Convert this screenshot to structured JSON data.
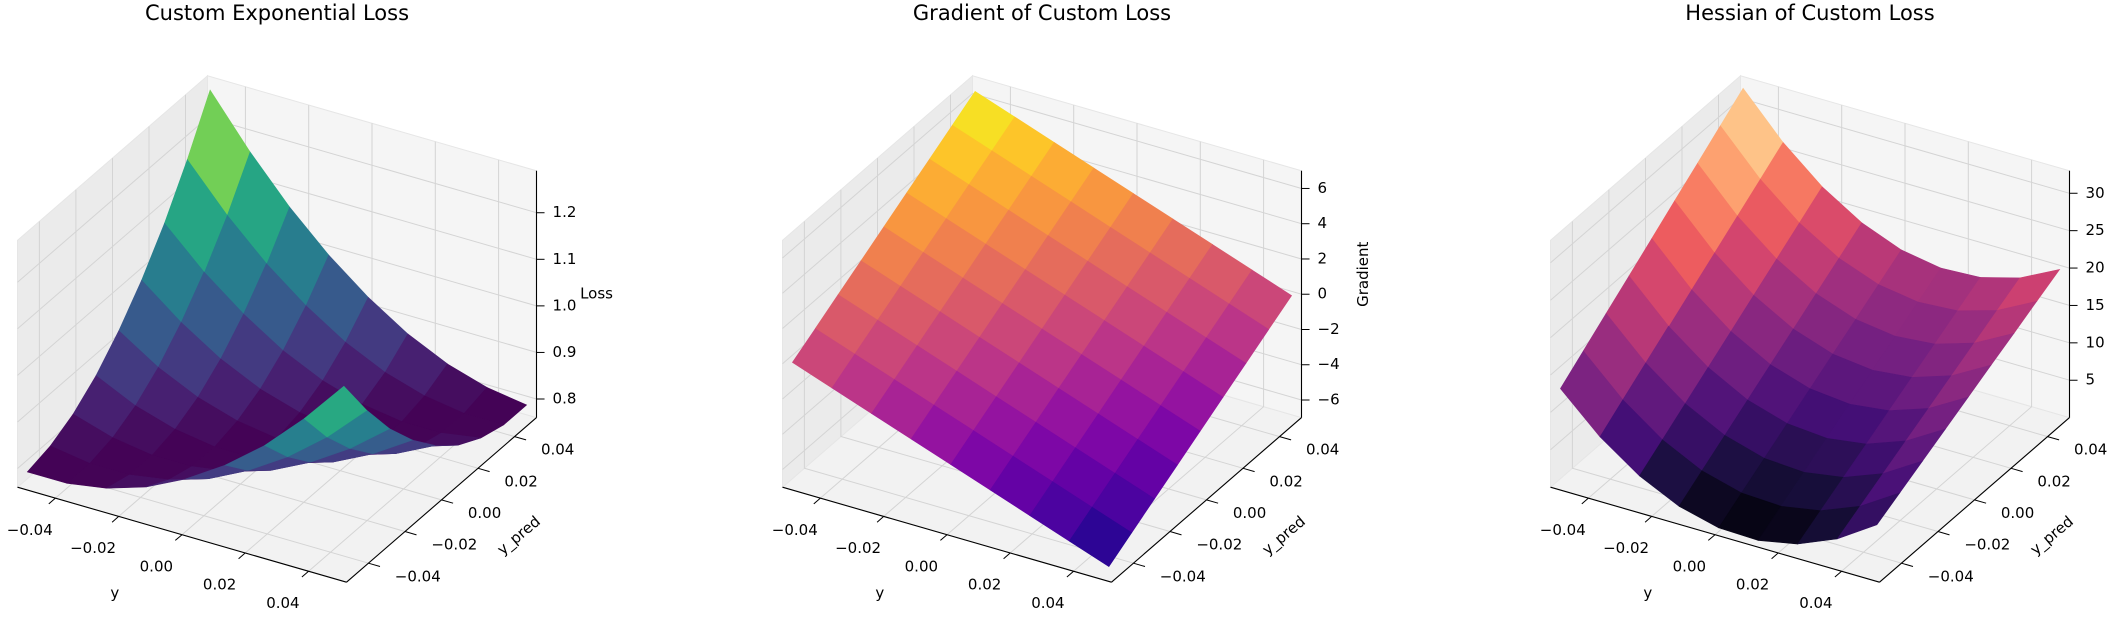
{
  "chart_data": [
    {
      "type": "surface",
      "title": "Custom Exponential Loss",
      "xlabel": "y",
      "ylabel": "y_pred",
      "zlabel": "Loss",
      "colormap": "viridis",
      "grid": true,
      "x": [
        -0.05,
        -0.0375,
        -0.025,
        -0.0125,
        0,
        0.0125,
        0.025,
        0.0375,
        0.05
      ],
      "y": [
        -0.05,
        -0.0375,
        -0.025,
        -0.0125,
        0,
        0.0125,
        0.025,
        0.0375,
        0.05
      ],
      "z": [
        [
          0.79,
          0.79,
          0.804,
          0.831,
          0.873,
          0.927,
          0.994,
          1.076,
          1.17
        ],
        [
          0.803,
          0.79,
          0.79,
          0.804,
          0.831,
          0.873,
          0.927,
          0.994,
          1.076
        ],
        [
          0.829,
          0.803,
          0.79,
          0.79,
          0.804,
          0.831,
          0.873,
          0.927,
          0.994
        ],
        [
          0.869,
          0.829,
          0.803,
          0.79,
          0.79,
          0.804,
          0.831,
          0.873,
          0.927
        ],
        [
          0.923,
          0.869,
          0.829,
          0.803,
          0.79,
          0.79,
          0.804,
          0.831,
          0.873
        ],
        [
          0.989,
          0.923,
          0.869,
          0.829,
          0.803,
          0.79,
          0.79,
          0.804,
          0.831
        ],
        [
          1.069,
          0.989,
          0.923,
          0.869,
          0.829,
          0.803,
          0.79,
          0.79,
          0.804
        ],
        [
          1.163,
          1.069,
          0.989,
          0.923,
          0.869,
          0.829,
          0.803,
          0.79,
          0.79
        ],
        [
          1.27,
          1.163,
          1.069,
          0.989,
          0.923,
          0.869,
          0.829,
          0.803,
          0.79
        ]
      ],
      "xlim": [
        -0.052,
        0.052
      ],
      "ylim": [
        -0.052,
        0.052
      ],
      "zlim": [
        0.76,
        1.29
      ],
      "xticks": [
        {
          "value": -0.04,
          "label": "−0.04"
        },
        {
          "value": -0.02,
          "label": "−0.02"
        },
        {
          "value": 0,
          "label": "0.00"
        },
        0.02,
        0.04
      ],
      "yticks": [
        {
          "value": -0.04,
          "label": "−0.04"
        },
        {
          "value": -0.02,
          "label": "−0.02"
        },
        {
          "value": 0,
          "label": "0.00"
        },
        0.02,
        0.04
      ],
      "zticks": [
        0.8,
        0.9,
        {
          "value": 1,
          "label": "1.0"
        },
        1.1,
        1.2
      ]
    },
    {
      "type": "surface",
      "title": "Gradient of Custom Loss",
      "xlabel": "y",
      "ylabel": "y_pred",
      "zlabel": "Gradient",
      "colormap": "plasma",
      "grid": true,
      "x": [
        -0.05,
        -0.0375,
        -0.025,
        -0.0125,
        0,
        0.0125,
        0.025,
        0.0375,
        0.05
      ],
      "y": [
        -0.05,
        -0.0375,
        -0.025,
        -0.0125,
        0,
        0.0125,
        0.025,
        0.0375,
        0.05
      ],
      "z": [
        [
          0,
          -0.8,
          -1.6,
          -2.4,
          -3.2,
          -4,
          -4.8,
          -5.6,
          -6.4
        ],
        [
          0.8,
          0,
          -0.8,
          -1.6,
          -2.4,
          -3.2,
          -4,
          -4.8,
          -5.6
        ],
        [
          1.6,
          0.8,
          0,
          -0.8,
          -1.6,
          -2.4,
          -3.2,
          -4,
          -4.8
        ],
        [
          2.4,
          1.6,
          0.8,
          0,
          -0.8,
          -1.6,
          -2.4,
          -3.2,
          -4
        ],
        [
          3.2,
          2.4,
          1.6,
          0.8,
          0,
          -0.8,
          -1.6,
          -2.4,
          -3.2
        ],
        [
          4,
          3.2,
          2.4,
          1.6,
          0.8,
          0,
          -0.8,
          -1.6,
          -2.4
        ],
        [
          4.8,
          4,
          3.2,
          2.4,
          1.6,
          0.8,
          0,
          -0.8,
          -1.6
        ],
        [
          5.6,
          4.8,
          4,
          3.2,
          2.4,
          1.6,
          0.8,
          0,
          -0.8
        ],
        [
          6.4,
          5.6,
          4.8,
          4,
          3.2,
          2.4,
          1.6,
          0.8,
          0
        ]
      ],
      "xlim": [
        -0.052,
        0.052
      ],
      "ylim": [
        -0.052,
        0.052
      ],
      "zlim": [
        -7,
        7
      ],
      "xticks": [
        {
          "value": -0.04,
          "label": "−0.04"
        },
        {
          "value": -0.02,
          "label": "−0.02"
        },
        {
          "value": 0,
          "label": "0.00"
        },
        0.02,
        0.04
      ],
      "yticks": [
        {
          "value": -0.04,
          "label": "−0.04"
        },
        {
          "value": -0.02,
          "label": "−0.02"
        },
        {
          "value": 0,
          "label": "0.00"
        },
        0.02,
        0.04
      ],
      "zticks": [
        {
          "value": -6,
          "label": "−6"
        },
        {
          "value": -4,
          "label": "−4"
        },
        {
          "value": -2,
          "label": "−2"
        },
        0,
        2,
        4,
        6
      ]
    },
    {
      "type": "surface",
      "title": "Hessian of Custom Loss",
      "xlabel": "y",
      "ylabel": "y_pred",
      "colormap": "magma",
      "grid": true,
      "x": [
        -0.05,
        -0.0375,
        -0.025,
        -0.0125,
        0,
        0.0125,
        0.025,
        0.0375,
        0.05
      ],
      "y": [
        -0.05,
        -0.0375,
        -0.025,
        -0.0125,
        0,
        0.0125,
        0.025,
        0.0375,
        0.05
      ],
      "z": [
        [
          13,
          8.09,
          4.38,
          1.84,
          0.5,
          0.34,
          1.38,
          3.59,
          7
        ],
        [
          15.38,
          10.38,
          6.56,
          3.94,
          2.5,
          2.25,
          3.19,
          5.31,
          8.63
        ],
        [
          17.75,
          12.66,
          8.75,
          6.03,
          4.5,
          4.16,
          5,
          7.03,
          10.25
        ],
        [
          20.13,
          14.94,
          10.94,
          8.13,
          6.5,
          6.06,
          6.81,
          8.75,
          11.88
        ],
        [
          22.5,
          17.22,
          13.13,
          10.22,
          8.5,
          7.97,
          8.63,
          10.47,
          13.5
        ],
        [
          24.88,
          19.5,
          15.31,
          12.31,
          10.5,
          9.88,
          10.44,
          12.19,
          15.13
        ],
        [
          27.25,
          21.78,
          17.5,
          14.41,
          12.5,
          11.78,
          12.25,
          13.91,
          16.75
        ],
        [
          29.63,
          24.06,
          19.69,
          16.5,
          14.5,
          13.69,
          14.06,
          15.63,
          18.38
        ],
        [
          32,
          26.34,
          21.88,
          18.59,
          16.5,
          15.59,
          15.88,
          17.34,
          20
        ]
      ],
      "xlim": [
        -0.052,
        0.052
      ],
      "ylim": [
        -0.052,
        0.052
      ],
      "zlim": [
        0,
        33
      ],
      "xticks": [
        {
          "value": -0.04,
          "label": "−0.04"
        },
        {
          "value": -0.02,
          "label": "−0.02"
        },
        {
          "value": 0,
          "label": "0.00"
        },
        0.02,
        0.04
      ],
      "yticks": [
        {
          "value": -0.04,
          "label": "−0.04"
        },
        {
          "value": -0.02,
          "label": "−0.02"
        },
        {
          "value": 0,
          "label": "0.00"
        },
        0.02,
        0.04
      ],
      "zticks": [
        5,
        10,
        15,
        20,
        25,
        30
      ]
    }
  ]
}
